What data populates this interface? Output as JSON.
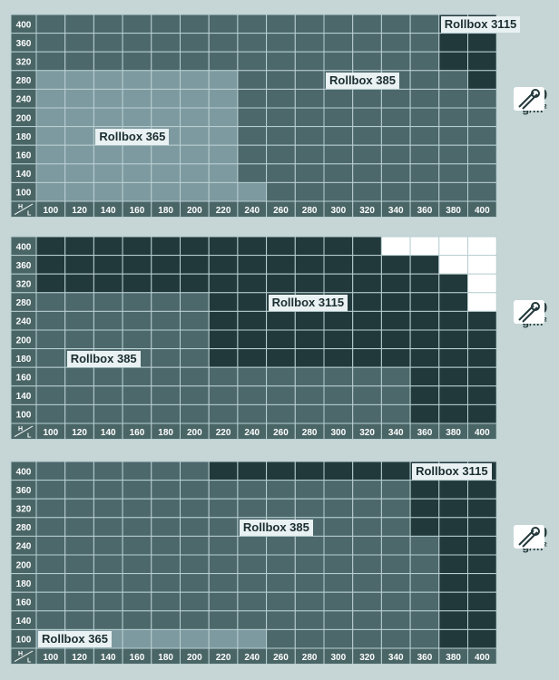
{
  "colors": {
    "Rollbox 365": "#7d9aa0",
    "Rollbox 385": "#4c686b",
    "Rollbox 3115": "#22393b",
    "none": "#ffffff",
    "axis": "#4a6566",
    "grid": "#b9cfd2"
  },
  "axis": {
    "h_symbol": "H",
    "l_symbol": "L"
  },
  "chart_data": [
    {
      "type": "heatmap",
      "x": [
        100,
        120,
        140,
        160,
        180,
        200,
        220,
        240,
        260,
        280,
        300,
        320,
        340,
        360,
        380,
        400
      ],
      "y": [
        100,
        140,
        160,
        180,
        200,
        240,
        280,
        320,
        360,
        400
      ],
      "regions": [
        {
          "name": "Rollbox 365",
          "rule": "x<=220 and y<=280; and x=240,y=100"
        },
        {
          "name": "Rollbox 385",
          "rule": "remaining cells"
        },
        {
          "name": "Rollbox 3115",
          "rule": "x>=380 and y>=320; and x=400,y=280"
        }
      ],
      "labels": [
        {
          "text": "Rollbox 365",
          "col": 2,
          "row": 6
        },
        {
          "text": "Rollbox 385",
          "col": 10,
          "row": 3
        },
        {
          "text": "Rollbox 3115",
          "col": 14,
          "row": 0
        }
      ],
      "weight": {
        "value": "150",
        "unit": "g/m²"
      }
    },
    {
      "type": "heatmap",
      "x": [
        100,
        120,
        140,
        160,
        180,
        200,
        220,
        240,
        260,
        280,
        300,
        320,
        340,
        360,
        380,
        400
      ],
      "y": [
        100,
        140,
        160,
        180,
        200,
        240,
        280,
        320,
        360,
        400
      ],
      "regions": [
        {
          "name": "Rollbox 385",
          "rule": "bottom-left area"
        },
        {
          "name": "Rollbox 3115",
          "rule": "y>=320; x>=220 and y>=180; x>=360"
        },
        {
          "name": "none",
          "rule": "white top-right corner"
        }
      ],
      "labels": [
        {
          "text": "Rollbox 3115",
          "col": 8,
          "row": 3
        },
        {
          "text": "Rollbox 385",
          "col": 1,
          "row": 6
        }
      ],
      "weight": {
        "value": "550",
        "unit": "g/m²"
      }
    },
    {
      "type": "heatmap",
      "x": [
        100,
        120,
        140,
        160,
        180,
        200,
        220,
        240,
        260,
        280,
        300,
        320,
        340,
        360,
        380,
        400
      ],
      "y": [
        100,
        140,
        160,
        180,
        200,
        240,
        280,
        320,
        360,
        400
      ],
      "regions": [
        {
          "name": "Rollbox 365",
          "rule": "y=100 and x<=240"
        },
        {
          "name": "Rollbox 385",
          "rule": "remaining cells"
        },
        {
          "name": "Rollbox 3115",
          "rule": "y=400 and x>=220; x>=380; x=360 and y>=280"
        }
      ],
      "labels": [
        {
          "text": "Rollbox 3115",
          "col": 13,
          "row": 0
        },
        {
          "text": "Rollbox 385",
          "col": 7,
          "row": 3
        },
        {
          "text": "Rollbox 365",
          "col": 0,
          "row": 9
        }
      ],
      "weight": {
        "value": "330",
        "unit": "g/m²"
      }
    }
  ]
}
